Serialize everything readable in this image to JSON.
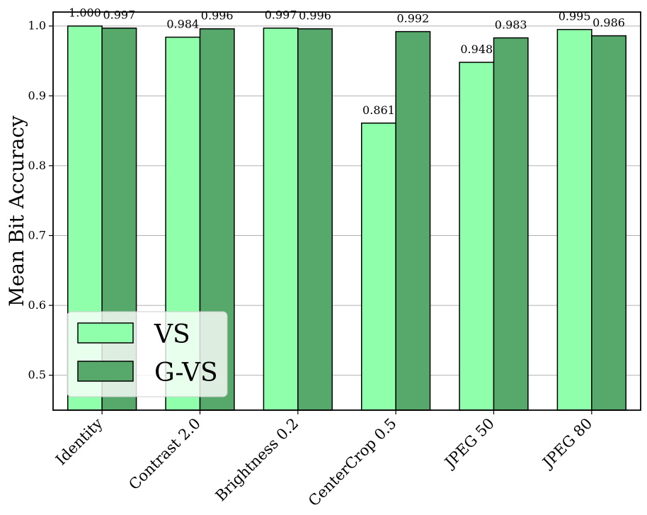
{
  "chart_data": {
    "type": "bar",
    "title": "",
    "xlabel": "",
    "ylabel": "Mean Bit Accuracy",
    "ylim": [
      0.45,
      1.02
    ],
    "yticks": [
      "0.5",
      "0.6",
      "0.7",
      "0.8",
      "0.9",
      "1.0"
    ],
    "grid": "horizontal",
    "legend_position": "bottom-left",
    "categories": [
      "Identity",
      "Contrast 2.0",
      "Brightness 0.2",
      "CenterCrop 0.5",
      "JPEG 50",
      "JPEG 80"
    ],
    "series": [
      {
        "name": "VS",
        "color": "#8fffab",
        "values": [
          1.0,
          0.984,
          0.997,
          0.861,
          0.948,
          0.995
        ],
        "labels": [
          "1.000",
          "0.984",
          "0.997",
          "0.861",
          "0.948",
          "0.995"
        ]
      },
      {
        "name": "G-VS",
        "color": "#57a96b",
        "values": [
          0.997,
          0.996,
          0.996,
          0.992,
          0.983,
          0.986
        ],
        "labels": [
          "0.997",
          "0.996",
          "0.996",
          "0.992",
          "0.983",
          "0.986"
        ]
      }
    ]
  }
}
